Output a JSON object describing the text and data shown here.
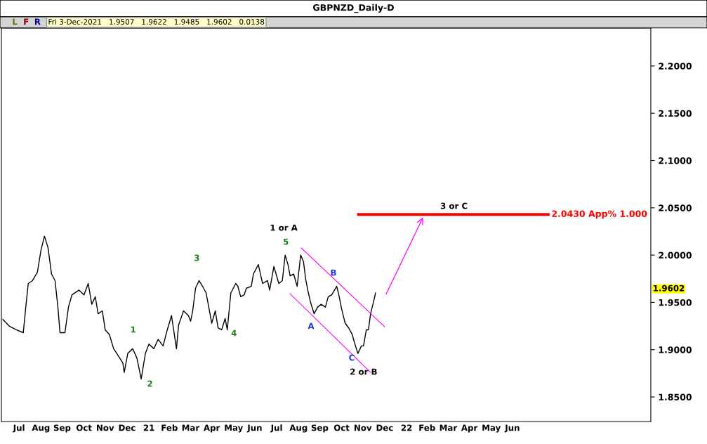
{
  "chart_data": {
    "type": "line",
    "title": "GBPNZD_Daily-D",
    "subtitle": "Fri 3-Dec-2021   1.9507   1.9622   1.9485   1.9602   0.0138",
    "x": [
      "2020-06-23",
      "2020-07-02",
      "2020-07-12",
      "2020-07-22",
      "2020-07-25",
      "2020-07-29",
      "2020-08-04",
      "2020-08-11",
      "2020-08-16",
      "2020-08-21",
      "2020-08-26",
      "2020-08-31",
      "2020-09-05",
      "2020-09-09",
      "2020-09-12",
      "2020-09-19",
      "2020-09-24",
      "2020-09-29",
      "2020-10-09",
      "2020-10-16",
      "2020-10-22",
      "2020-10-27",
      "2020-11-01",
      "2020-11-05",
      "2020-11-11",
      "2020-11-15",
      "2020-11-21",
      "2020-11-27",
      "2020-12-04",
      "2020-12-10",
      "2020-12-12",
      "2020-12-17",
      "2020-12-24",
      "2020-12-30",
      "2021-01-05",
      "2021-01-11",
      "2021-01-16",
      "2021-01-23",
      "2021-01-29",
      "2021-02-05",
      "2021-02-11",
      "2021-02-17",
      "2021-02-24",
      "2021-02-27",
      "2021-03-06",
      "2021-03-13",
      "2021-03-16",
      "2021-03-19",
      "2021-03-23",
      "2021-03-28",
      "2021-04-02",
      "2021-04-07",
      "2021-04-10",
      "2021-04-15",
      "2021-04-20",
      "2021-04-24",
      "2021-04-29",
      "2021-05-04",
      "2021-05-07",
      "2021-05-12",
      "2021-05-19",
      "2021-05-22",
      "2021-05-26",
      "2021-05-31",
      "2021-06-03",
      "2021-06-10",
      "2021-06-13",
      "2021-06-20",
      "2021-06-23",
      "2021-06-26",
      "2021-07-03",
      "2021-07-06",
      "2021-07-12",
      "2021-07-19",
      "2021-07-24",
      "2021-07-28",
      "2021-08-01",
      "2021-08-04",
      "2021-08-09",
      "2021-08-14",
      "2021-08-19",
      "2021-08-23",
      "2021-08-26",
      "2021-08-29",
      "2021-09-02",
      "2021-09-07",
      "2021-09-12",
      "2021-09-17",
      "2021-09-23",
      "2021-09-27",
      "2021-10-02",
      "2021-10-09",
      "2021-10-12",
      "2021-10-16",
      "2021-10-21",
      "2021-10-26",
      "2021-10-31",
      "2021-11-03",
      "2021-11-08",
      "2021-11-13",
      "2021-11-16",
      "2021-11-20",
      "2021-11-23",
      "2021-11-26",
      "2021-11-30",
      "2021-12-01",
      "2021-12-03"
    ],
    "series": [
      {
        "color": "#000000",
        "values": [
          1.932,
          1.925,
          1.921,
          1.918,
          1.941,
          1.97,
          1.973,
          1.982,
          2.005,
          2.02,
          2.008,
          1.98,
          1.973,
          1.945,
          1.918,
          1.918,
          1.945,
          1.958,
          1.963,
          1.958,
          1.97,
          1.948,
          1.956,
          1.938,
          1.941,
          1.921,
          1.916,
          1.901,
          1.893,
          1.886,
          1.876,
          1.896,
          1.901,
          1.891,
          1.869,
          1.896,
          1.906,
          1.901,
          1.911,
          1.904,
          1.921,
          1.936,
          1.901,
          1.926,
          1.941,
          1.936,
          1.93,
          1.941,
          1.965,
          1.973,
          1.967,
          1.96,
          1.948,
          1.928,
          1.941,
          1.923,
          1.921,
          1.933,
          1.921,
          1.96,
          1.97,
          1.967,
          1.956,
          1.958,
          1.965,
          1.967,
          1.98,
          1.99,
          1.98,
          1.97,
          1.973,
          1.963,
          1.988,
          1.97,
          1.973,
          2.0,
          1.99,
          1.978,
          1.98,
          1.967,
          2.0,
          1.993,
          1.975,
          1.963,
          1.95,
          1.938,
          1.945,
          1.948,
          1.945,
          1.956,
          1.958,
          1.967,
          1.958,
          1.943,
          1.928,
          1.923,
          1.916,
          1.908,
          1.896,
          1.904,
          1.904,
          1.921,
          1.921,
          1.938,
          1.95,
          1.953,
          1.96
        ]
      }
    ],
    "xlim": [
      "2020-06-21",
      "2022-12-28"
    ],
    "xticks": [
      {
        "value": "2020-07-16",
        "label": "Jul"
      },
      {
        "value": "2020-08-16",
        "label": "Aug"
      },
      {
        "value": "2020-09-15",
        "label": "Sep"
      },
      {
        "value": "2020-10-16",
        "label": "Oct"
      },
      {
        "value": "2020-11-15",
        "label": "Nov"
      },
      {
        "value": "2020-12-16",
        "label": "Dec"
      },
      {
        "value": "2021-01-16",
        "label": "21"
      },
      {
        "value": "2021-02-14",
        "label": "Feb"
      },
      {
        "value": "2021-03-16",
        "label": "Mar"
      },
      {
        "value": "2021-04-15",
        "label": "Apr"
      },
      {
        "value": "2021-05-16",
        "label": "May"
      },
      {
        "value": "2021-06-15",
        "label": "Jun"
      },
      {
        "value": "2021-07-16",
        "label": "Jul"
      },
      {
        "value": "2021-08-16",
        "label": "Aug"
      },
      {
        "value": "2021-09-15",
        "label": "Sep"
      },
      {
        "value": "2021-10-16",
        "label": "Oct"
      },
      {
        "value": "2021-11-15",
        "label": "Nov"
      },
      {
        "value": "2021-12-16",
        "label": "Dec"
      },
      {
        "value": "2022-01-16",
        "label": "22"
      },
      {
        "value": "2022-02-14",
        "label": "Feb"
      },
      {
        "value": "2022-03-16",
        "label": "Mar"
      },
      {
        "value": "2022-04-15",
        "label": "Apr"
      },
      {
        "value": "2022-05-16",
        "label": "May"
      },
      {
        "value": "2022-06-15",
        "label": "Jun"
      }
    ],
    "ylim": [
      1.824,
      2.24
    ],
    "yticks": [
      {
        "value": 1.85,
        "label": "1.8500"
      },
      {
        "value": 1.9,
        "label": "1.9000"
      },
      {
        "value": 1.95,
        "label": "1.9500"
      },
      {
        "value": 2.0,
        "label": "2.0000"
      },
      {
        "value": 2.05,
        "label": "2.0500"
      },
      {
        "value": 2.1,
        "label": "2.1000"
      },
      {
        "value": 2.15,
        "label": "2.1500"
      },
      {
        "value": 2.2,
        "label": "2.2000"
      }
    ],
    "ref_lines": [
      {
        "axis": "y",
        "value": 2.043,
        "label": "2.0430 App% 1.000",
        "color": "#ff0000"
      }
    ],
    "annotations": [
      "1",
      "2",
      "3",
      "4",
      "5",
      "1 or A",
      "A",
      "B",
      "C",
      "2 or B",
      "3 or C",
      "1.9602",
      "L",
      "F",
      "R"
    ],
    "grid": false,
    "marker": "none",
    "line_style": "solid"
  }
}
